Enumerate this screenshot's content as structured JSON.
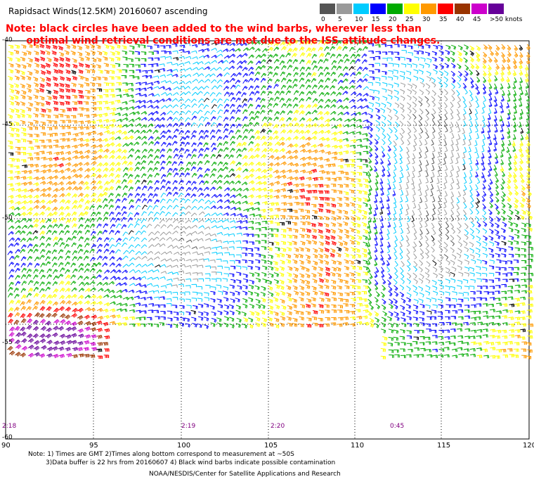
{
  "title": "Rapidsact Winds(12.5KM) 20160607 ascending",
  "note_line1": "Note: black circles have been added to the wind barbs, wherever less than",
  "note_line2": "      optimal wind retrieval conditions are met due to the ISS attitude changes.",
  "color_scale": {
    "unit_label": ">50 knots",
    "labels": [
      "0",
      "5",
      "10",
      "15",
      "20",
      "25",
      "30",
      "35",
      "40",
      "45"
    ],
    "colors": [
      "#555555",
      "#9a9a9a",
      "#00ccff",
      "#0000ff",
      "#00aa00",
      "#ffff00",
      "#ff9900",
      "#ff0000",
      "#993300",
      "#cc00cc",
      "#660099"
    ]
  },
  "latitude_labels": [
    "-40",
    "-45",
    "-50",
    "-55",
    "-60"
  ],
  "longitude_labels": [
    "90",
    "95",
    "100",
    "105",
    "110",
    "115",
    "120"
  ],
  "pass_times": [
    "2:18",
    "2:19",
    "2:20",
    "0:45"
  ],
  "footer": {
    "note1": "Note: 1) Times are GMT 2)Times along bottom correspond to measurement at ~50S",
    "note2": "3)Data buffer is 22 hrs from 20160607 4) Black wind barbs indicate possible contamination",
    "credit": "NOAA/NESDIS/Center for Satellite Applications and Research"
  }
}
